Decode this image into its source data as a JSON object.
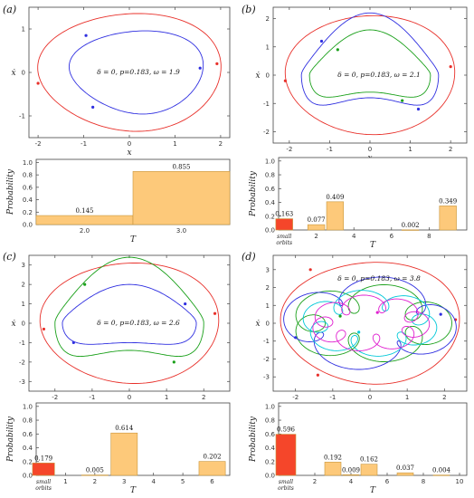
{
  "panels": [
    {
      "label": "(a)",
      "phase": {
        "annotation": "δ = 0, p=0.183, ω = 1.9",
        "xlabel": "x",
        "ylabel": "ẋ",
        "xticks": [
          "-2",
          "-1",
          "0",
          "1",
          "2"
        ],
        "yticks": [
          "-1",
          "0",
          "1"
        ]
      },
      "bar": {
        "ylabel": "Probability",
        "xlabel": "T",
        "yticks": [
          "0.0",
          "0.2",
          "0.4",
          "0.6",
          "0.8",
          "1.0"
        ],
        "xticks": [
          "2.0",
          "3.0"
        ],
        "small_label": ""
      }
    },
    {
      "label": "(b)",
      "phase": {
        "annotation": "δ = 0, p=0.183, ω = 2.1",
        "xlabel": "x",
        "ylabel": "ẋ",
        "xticks": [
          "-2",
          "-1",
          "0",
          "1",
          "2"
        ],
        "yticks": [
          "-2",
          "-1",
          "0",
          "1",
          "2"
        ]
      },
      "bar": {
        "ylabel": "Probability",
        "xlabel": "T",
        "yticks": [
          "0.0",
          "0.2",
          "0.4",
          "0.6",
          "0.8",
          "1.0"
        ],
        "xticks": [
          "2",
          "4",
          "6",
          "8"
        ],
        "small_label": [
          "small",
          "orbits"
        ]
      }
    },
    {
      "label": "(c)",
      "phase": {
        "annotation": "δ = 0, p=0.183, ω = 2.6",
        "xlabel": "x",
        "ylabel": "ẋ",
        "xticks": [
          "-2",
          "-1",
          "0",
          "1",
          "2"
        ],
        "yticks": [
          "-3",
          "-2",
          "-1",
          "0",
          "1",
          "2",
          "3"
        ]
      },
      "bar": {
        "ylabel": "Probability",
        "xlabel": "T",
        "yticks": [
          "0.0",
          "0.2",
          "0.4",
          "0.6",
          "0.8",
          "1.0"
        ],
        "xticks": [
          "1",
          "2",
          "3",
          "4",
          "5",
          "6"
        ],
        "small_label": [
          "small",
          "orbits"
        ]
      }
    },
    {
      "label": "(d)",
      "phase": {
        "annotation": "δ = 0, p=0.183, ω = 3.8",
        "xlabel": "x",
        "ylabel": "ẋ",
        "xticks": [
          "-2",
          "-1",
          "0",
          "1",
          "2"
        ],
        "yticks": [
          "-3",
          "-2",
          "-1",
          "0",
          "1",
          "2",
          "3"
        ]
      },
      "bar": {
        "ylabel": "Probability",
        "xlabel": "T",
        "yticks": [
          "0.0",
          "0.2",
          "0.4",
          "0.6",
          "0.8",
          "1.0"
        ],
        "xticks": [
          "2",
          "4",
          "6",
          "8",
          "10"
        ],
        "small_label": [
          "small",
          "orbits"
        ]
      }
    }
  ],
  "colors": {
    "red_orbit": "#e8302a",
    "blue_orbit": "#2f2fe0",
    "green_orbit": "#1aa01a",
    "cyan_orbit": "#00c8d8",
    "magenta_orbit": "#e020d0",
    "bar_fill": "#fdc97a",
    "bar_edge": "#c8963c",
    "small_bar_fill": "#f5462a"
  },
  "chart_data": [
    {
      "type": "line",
      "panel": "(a) phase portrait",
      "annotation": "δ = 0, p=0.183, ω = 1.9",
      "xlabel": "x",
      "ylabel": "ẋ",
      "xlim": [
        -2.2,
        2.2
      ],
      "ylim": [
        -1.5,
        1.5
      ],
      "series": [
        {
          "color": "red",
          "shape": "outer loop",
          "x_extent": [
            -2.05,
            2.05
          ],
          "y_extent": [
            -1.3,
            1.3
          ]
        },
        {
          "color": "blue",
          "shape": "inner loop",
          "x_extent": [
            -1.3,
            1.6
          ],
          "y_extent": [
            -1.0,
            1.0
          ]
        }
      ]
    },
    {
      "type": "bar",
      "panel": "(a) histogram",
      "xlabel": "T",
      "ylabel": "Probability",
      "categories": [
        "2.0",
        "3.0"
      ],
      "values": [
        0.145,
        0.855
      ],
      "labels": [
        "0.145",
        "0.855"
      ],
      "ylim": [
        0,
        1.0
      ]
    },
    {
      "type": "line",
      "panel": "(b) phase portrait",
      "annotation": "δ = 0, p=0.183, ω = 2.1",
      "xlabel": "x",
      "ylabel": "ẋ",
      "xlim": [
        -2.4,
        2.4
      ],
      "ylim": [
        -2.4,
        2.4
      ],
      "series": [
        {
          "color": "red",
          "shape": "outer loop"
        },
        {
          "color": "blue",
          "shape": "double loop"
        },
        {
          "color": "green",
          "shape": "inner loop"
        }
      ]
    },
    {
      "type": "bar",
      "panel": "(b) histogram",
      "xlabel": "T",
      "ylabel": "Probability",
      "categories": [
        "small orbits",
        "2",
        "3",
        "7",
        "9"
      ],
      "values": [
        0.163,
        0.077,
        0.409,
        0.002,
        0.349
      ],
      "labels": [
        "0.163",
        "0.077",
        "0.409",
        "0.002",
        "0.349"
      ],
      "ylim": [
        0,
        1.0
      ]
    },
    {
      "type": "line",
      "panel": "(c) phase portrait",
      "annotation": "δ = 0, p=0.183, ω = 2.6",
      "xlabel": "x",
      "ylabel": "ẋ",
      "xlim": [
        -2.7,
        2.7
      ],
      "ylim": [
        -3.5,
        3.5
      ],
      "series": [
        {
          "color": "red",
          "shape": "outer loop"
        },
        {
          "color": "green",
          "shape": "middle loop"
        },
        {
          "color": "blue",
          "shape": "inner loop"
        }
      ]
    },
    {
      "type": "bar",
      "panel": "(c) histogram",
      "xlabel": "T",
      "ylabel": "Probability",
      "categories": [
        "small orbits",
        "2",
        "3",
        "6"
      ],
      "values": [
        0.179,
        0.005,
        0.614,
        0.202
      ],
      "labels": [
        "0.179",
        "0.005",
        "0.614",
        "0.202"
      ],
      "ylim": [
        0,
        1.0
      ]
    },
    {
      "type": "line",
      "panel": "(d) phase portrait",
      "annotation": "δ = 0, p=0.183, ω = 3.8",
      "xlabel": "x",
      "ylabel": "ẋ",
      "xlim": [
        -2.6,
        2.6
      ],
      "ylim": [
        -3.8,
        3.8
      ],
      "series": [
        {
          "color": "red",
          "shape": "outer loop"
        },
        {
          "color": "blue",
          "shape": "looped orbit"
        },
        {
          "color": "green",
          "shape": "looped orbit"
        },
        {
          "color": "cyan",
          "shape": "looped orbit"
        },
        {
          "color": "magenta",
          "shape": "looped orbit"
        }
      ]
    },
    {
      "type": "bar",
      "panel": "(d) histogram",
      "xlabel": "T",
      "ylabel": "Probability",
      "categories": [
        "small orbits",
        "3",
        "4",
        "5",
        "7",
        "9"
      ],
      "values": [
        0.596,
        0.192,
        0.009,
        0.162,
        0.037,
        0.004
      ],
      "labels": [
        "0.596",
        "0.192",
        "0.009",
        "0.162",
        "0.037",
        "0.004"
      ],
      "ylim": [
        0,
        1.0
      ]
    }
  ]
}
